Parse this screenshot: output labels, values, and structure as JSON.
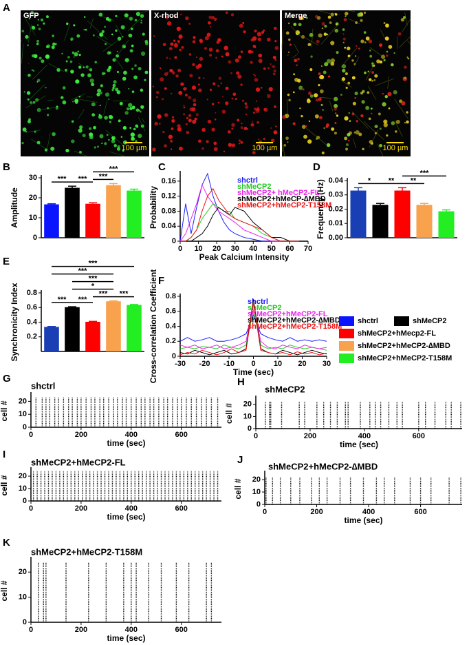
{
  "figure_a": {
    "panel": "A",
    "images": [
      {
        "label": "GFP",
        "scale": "100 µm"
      },
      {
        "label": "X-rhod",
        "scale": "100 µm"
      },
      {
        "label": "Merge",
        "scale": "100 µm"
      }
    ]
  },
  "legend": {
    "entries": [
      {
        "name": "shctrl",
        "color": "#0a14ff"
      },
      {
        "name": "shMeCP2",
        "color": "#000000"
      },
      {
        "name": "shMeCP2+hMecp2-FL",
        "color": "#ff0000"
      },
      {
        "name": "shMeCP2+hMeCP2-∆MBD",
        "color": "#f9a24e"
      },
      {
        "name": "shMeCP2+hMeCP2-T158M",
        "color": "#22ee22"
      }
    ]
  },
  "chart_data": [
    {
      "type": "bar",
      "panel": "B",
      "ylabel": "Amplitude",
      "categories": [
        null,
        null,
        null,
        null,
        null
      ],
      "values": [
        16.7,
        25,
        17,
        26.3,
        23.6
      ],
      "errors": [
        0.3,
        0.8,
        0.5,
        0.8,
        0.7
      ],
      "colors": [
        "#0a14ff",
        "#000000",
        "#ff0000",
        "#f9a24e",
        "#22ee22"
      ],
      "ylim": [
        0,
        30
      ],
      "yticks": [
        0,
        10,
        20,
        30
      ],
      "annotations": [
        {
          "text": "***",
          "between": [
            0,
            1
          ]
        },
        {
          "text": "***",
          "between": [
            1,
            2
          ]
        },
        {
          "text": "***",
          "between": [
            2,
            3
          ]
        },
        {
          "text": "***",
          "between": [
            2,
            4
          ]
        }
      ]
    },
    {
      "type": "line",
      "panel": "C",
      "xlabel": "Peak Calcium Intensity",
      "ylabel": "Probability",
      "x": [
        0,
        3,
        6,
        9,
        12,
        15,
        18,
        21,
        24,
        27,
        30,
        35,
        40,
        45,
        50,
        55,
        60,
        65
      ],
      "xlim": [
        0,
        70
      ],
      "xticks": [
        0,
        10,
        20,
        30,
        40,
        50,
        60,
        70
      ],
      "ylim": [
        0,
        0.18
      ],
      "yticks": [
        0,
        0.04,
        0.08,
        0.12,
        0.16
      ],
      "series": [
        {
          "name": "shctrl",
          "color": "#1a1aff",
          "values": [
            0,
            0.1,
            0.02,
            0.09,
            0.15,
            0.18,
            0.12,
            0.08,
            0.05,
            0.03,
            0.02,
            0.01,
            0.005,
            0,
            0,
            0,
            0,
            0
          ]
        },
        {
          "name": "shMeCP2",
          "color": "#22cc22",
          "values": [
            0,
            0,
            0.01,
            0.03,
            0.06,
            0.08,
            0.1,
            0.09,
            0.08,
            0.08,
            0.06,
            0.05,
            0.04,
            0.02,
            0.01,
            0,
            0,
            0
          ]
        },
        {
          "name": "shMeCP2+ hMeCP2-FL",
          "color": "#ee22ee",
          "values": [
            0,
            0.02,
            0.06,
            0.1,
            0.15,
            0.12,
            0.1,
            0.08,
            0.07,
            0.06,
            0.05,
            0.03,
            0.02,
            0.01,
            0,
            0,
            0,
            0
          ]
        },
        {
          "name": "shMeCP2+hMeCP-∆MBD",
          "color": "#000000",
          "values": [
            0,
            0,
            0,
            0.01,
            0.02,
            0.04,
            0.07,
            0.09,
            0.08,
            0.07,
            0.09,
            0.08,
            0.05,
            0.03,
            0.01,
            0.01,
            0,
            0
          ]
        },
        {
          "name": "shMeCP2+hMeCP2-T158M",
          "color": "#ee1111",
          "values": [
            0,
            0,
            0.01,
            0.03,
            0.08,
            0.12,
            0.14,
            0.11,
            0.09,
            0.07,
            0.06,
            0.05,
            0.04,
            0.03,
            0.01,
            0,
            0,
            0
          ]
        }
      ]
    },
    {
      "type": "bar",
      "panel": "D",
      "ylabel": "Frequency (Hz)",
      "categories": [
        null,
        null,
        null,
        null,
        null
      ],
      "values": [
        0.033,
        0.023,
        0.033,
        0.023,
        0.0185
      ],
      "errors": [
        0.002,
        0.001,
        0.002,
        0.001,
        0.001
      ],
      "colors": [
        "#1a3fb5",
        "#000000",
        "#ff0000",
        "#f9a24e",
        "#22ee22"
      ],
      "ylim": [
        0,
        0.04
      ],
      "yticks": [
        {
          "value": 0,
          "label": "0.00"
        },
        0.01,
        0.02,
        0.03,
        0.04
      ],
      "annotations": [
        {
          "text": "*",
          "between": [
            0,
            1
          ]
        },
        {
          "text": "**",
          "between": [
            1,
            2
          ]
        },
        {
          "text": "**",
          "between": [
            2,
            3
          ]
        },
        {
          "text": "***",
          "between": [
            2,
            4
          ]
        }
      ]
    },
    {
      "type": "bar",
      "panel": "E",
      "ylabel": "Synchronicity Index",
      "categories": [
        null,
        null,
        null,
        null,
        null
      ],
      "values": [
        0.335,
        0.605,
        0.405,
        0.685,
        0.635
      ],
      "errors": [
        0.006,
        0.006,
        0.006,
        0.006,
        0.006
      ],
      "colors": [
        "#1a3fb5",
        "#000000",
        "#ff0000",
        "#f9a24e",
        "#22ee22"
      ],
      "ylim": [
        0,
        0.8
      ],
      "yticks": [
        0.2,
        0.4,
        0.6,
        0.8
      ],
      "annotations": [
        {
          "text": "***",
          "between": [
            0,
            1
          ]
        },
        {
          "text": "***",
          "between": [
            1,
            2
          ]
        },
        {
          "text": "***",
          "between": [
            2,
            3
          ]
        },
        {
          "text": "***",
          "between": [
            3,
            4
          ]
        },
        {
          "text": "*",
          "between": [
            1,
            3
          ]
        },
        {
          "text": "***",
          "between": [
            1,
            3
          ]
        },
        {
          "text": "***",
          "between": [
            0,
            3
          ]
        },
        {
          "text": "***",
          "between": [
            0,
            4
          ]
        }
      ]
    },
    {
      "type": "line",
      "panel": "F",
      "xlabel": "Time (sec)",
      "ylabel": "Cross-correlation Coefficient",
      "x": [
        -30,
        -27,
        -24,
        -21,
        -18,
        -15,
        -12,
        -9,
        -6,
        -3,
        0,
        3,
        6,
        9,
        12,
        15,
        18,
        21,
        24,
        27,
        30
      ],
      "xlim": [
        -30,
        30
      ],
      "xticks": [
        -30,
        -20,
        -10,
        0,
        10,
        20,
        30
      ],
      "ylim": [
        0,
        0.8
      ],
      "yticks": [
        0,
        0.2,
        0.4,
        0.6,
        0.8
      ],
      "series": [
        {
          "name": "shctrl",
          "color": "#1a1aff",
          "values": [
            0.2,
            0.25,
            0.2,
            0.22,
            0.25,
            0.2,
            0.2,
            0.22,
            0.25,
            0.3,
            0.55,
            0.3,
            0.25,
            0.22,
            0.2,
            0.25,
            0.2,
            0.22,
            0.2,
            0.22,
            0.2
          ]
        },
        {
          "name": "shMeCP2",
          "color": "#22cc22",
          "values": [
            0.1,
            0.12,
            0.1,
            0.13,
            0.12,
            0.1,
            0.15,
            0.12,
            0.1,
            0.15,
            0.62,
            0.15,
            0.1,
            0.12,
            0.1,
            0.15,
            0.12,
            0.1,
            0.12,
            0.1,
            0.08
          ]
        },
        {
          "name": "shMeCP2+hMeCP2-FL",
          "color": "#ee22ee",
          "values": [
            0.15,
            0.12,
            0.15,
            0.1,
            0.12,
            0.15,
            0.1,
            0.12,
            0.15,
            0.2,
            0.7,
            0.2,
            0.12,
            0.1,
            0.15,
            0.12,
            0.1,
            0.15,
            0.12,
            0.1,
            0.12
          ]
        },
        {
          "name": "shMeCP2+hMeCP2-∆MBD",
          "color": "#000000",
          "values": [
            0.05,
            0.03,
            0.08,
            0.05,
            0.02,
            0.05,
            0.08,
            0.03,
            0.05,
            0.1,
            0.76,
            0.1,
            0.05,
            0.03,
            0.08,
            0.05,
            0.02,
            0.05,
            0.08,
            0.05,
            0.03
          ]
        },
        {
          "name": "shMeCP2+hMeCP2-T158M",
          "color": "#ee1111",
          "values": [
            0.02,
            0.05,
            0.03,
            0.08,
            0.05,
            0.02,
            0.05,
            0.1,
            0.05,
            0.08,
            0.73,
            0.08,
            0.05,
            0.03,
            0.05,
            0.02,
            0.06,
            0.03,
            0.05,
            0.02,
            0.04
          ]
        }
      ]
    },
    {
      "type": "raster",
      "panel": "G",
      "title": "shctrl",
      "xlabel": "time (sec)",
      "ylabel": "cell #",
      "xlim": [
        0,
        760
      ],
      "xticks": [
        0,
        200,
        400,
        600
      ],
      "ylim": [
        0,
        25
      ],
      "yticks": [
        0,
        10,
        20
      ],
      "x": [
        20,
        45,
        60,
        75,
        95,
        110,
        130,
        150,
        165,
        185,
        200,
        220,
        240,
        255,
        275,
        290,
        310,
        330,
        345,
        365,
        380,
        400,
        420,
        440,
        455,
        475,
        490,
        510,
        530,
        545,
        565,
        585,
        600,
        620,
        640,
        660,
        680,
        700,
        720,
        745
      ],
      "y": [
        23,
        23,
        23,
        23,
        23,
        23,
        23,
        23,
        23,
        23,
        23,
        23,
        23,
        23,
        23,
        23,
        23,
        23,
        23,
        23,
        23,
        23,
        23,
        23,
        23,
        23,
        23,
        23,
        23,
        23,
        23,
        23,
        23,
        23,
        23,
        23,
        23,
        23,
        23,
        23
      ]
    },
    {
      "type": "raster",
      "panel": "H",
      "title": "shMeCP2",
      "xlabel": "time (sec)",
      "ylabel": "cell #",
      "xlim": [
        0,
        760
      ],
      "xticks": [
        0,
        200,
        400,
        600
      ],
      "ylim": [
        0,
        25
      ],
      "yticks": [
        0,
        10,
        20
      ],
      "x": [
        35,
        50,
        55,
        95,
        160,
        180,
        225,
        250,
        275,
        300,
        330,
        340,
        385,
        420,
        440,
        460,
        490,
        520,
        540,
        600,
        625,
        660,
        700,
        720,
        755
      ],
      "y": [
        22,
        22,
        22,
        22,
        22,
        22,
        22,
        22,
        22,
        22,
        22,
        22,
        22,
        22,
        22,
        22,
        22,
        22,
        22,
        22,
        22,
        22,
        22,
        22,
        22
      ]
    },
    {
      "type": "raster",
      "panel": "I",
      "title": "shMeCP2+hMeCP2-FL",
      "xlabel": "time (sec)",
      "ylabel": "cell #",
      "xlim": [
        0,
        760
      ],
      "xticks": [
        0,
        200,
        400,
        600
      ],
      "ylim": [
        0,
        25
      ],
      "yticks": [
        0,
        10,
        20
      ],
      "x": [
        10,
        25,
        40,
        55,
        70,
        85,
        100,
        115,
        130,
        145,
        160,
        175,
        190,
        205,
        220,
        235,
        250,
        265,
        280,
        295,
        310,
        325,
        340,
        355,
        370,
        385,
        400,
        415,
        430,
        445,
        460,
        475,
        490,
        505,
        520,
        535,
        550,
        565,
        580,
        595,
        610,
        625,
        640,
        655,
        670,
        685,
        700,
        715,
        730,
        745
      ],
      "y": [
        24,
        24,
        24,
        24,
        24,
        24,
        24,
        24,
        24,
        24,
        24,
        24,
        24,
        24,
        24,
        24,
        24,
        24,
        24,
        24,
        24,
        24,
        24,
        24,
        24,
        24,
        24,
        24,
        24,
        24,
        24,
        24,
        24,
        24,
        24,
        24,
        24,
        24,
        24,
        24,
        24,
        24,
        24,
        24,
        24,
        24,
        24,
        24,
        24,
        24
      ]
    },
    {
      "type": "raster",
      "panel": "J",
      "title": "shMeCP2+hMeCP2-∆MBD",
      "xlabel": "time (sec)",
      "ylabel": "cell #",
      "xlim": [
        0,
        760
      ],
      "xticks": [
        0,
        200,
        400,
        600
      ],
      "ylim": [
        0,
        25
      ],
      "yticks": [
        0,
        10,
        20
      ],
      "x": [
        5,
        30,
        60,
        100,
        135,
        180,
        210,
        240,
        290,
        330,
        380,
        430,
        460,
        500,
        560,
        600,
        640,
        710,
        755
      ],
      "y": [
        22,
        22,
        22,
        22,
        22,
        22,
        22,
        22,
        22,
        22,
        22,
        22,
        22,
        22,
        22,
        22,
        22,
        22,
        22
      ]
    },
    {
      "type": "raster",
      "panel": "K",
      "title": "shMeCP2+hMeCP2-T158M",
      "xlabel": "time (sec)",
      "ylabel": "cell #",
      "xlim": [
        0,
        760
      ],
      "xticks": [
        0,
        200,
        400,
        600
      ],
      "ylim": [
        0,
        25
      ],
      "yticks": [
        0,
        10,
        20
      ],
      "x": [
        30,
        50,
        60,
        140,
        230,
        300,
        370,
        400,
        420,
        470,
        520,
        580,
        630,
        700,
        720
      ],
      "y": [
        24,
        24,
        24,
        24,
        24,
        24,
        24,
        24,
        24,
        24,
        24,
        24,
        24,
        24,
        24
      ]
    }
  ]
}
